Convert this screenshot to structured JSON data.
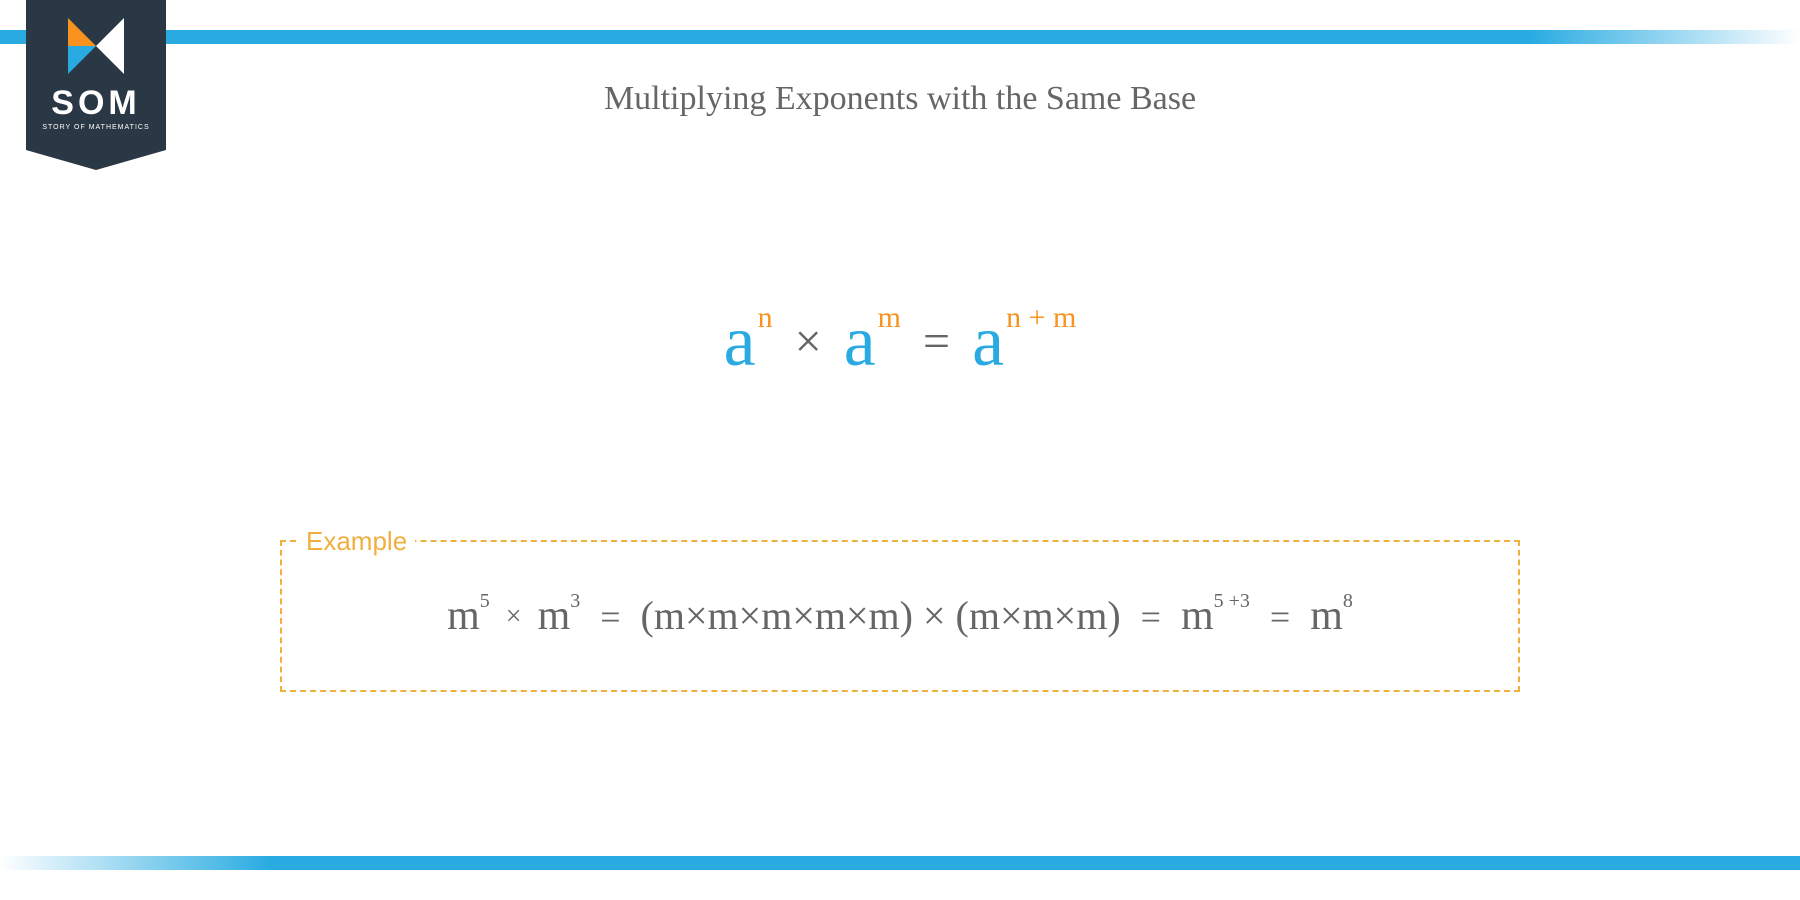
{
  "colors": {
    "accent_blue": "#29abe2",
    "accent_orange": "#f7931e",
    "accent_yellow": "#f0b040",
    "badge_bg": "#2a3744",
    "text_gray": "#666666",
    "background": "#ffffff"
  },
  "logo": {
    "name": "SOM",
    "subtext": "STORY OF MATHEMATICS"
  },
  "title": "Multiplying Exponents with the Same Base",
  "formula": {
    "base1": "a",
    "exp1": "n",
    "operator": "×",
    "base2": "a",
    "exp2": "m",
    "equals": "=",
    "base3": "a",
    "exp3": "n + m"
  },
  "example": {
    "label": "Example",
    "left_base1": "m",
    "left_exp1": "5",
    "times_small": "×",
    "left_base2": "m",
    "left_exp2": "3",
    "eq": "=",
    "expansion": "(m×m×m×m×m) × (m×m×m)",
    "res1_base": "m",
    "res1_exp": "5 +3",
    "res2_base": "m",
    "res2_exp": "8"
  }
}
